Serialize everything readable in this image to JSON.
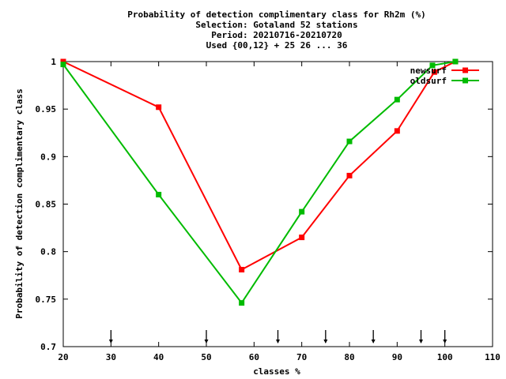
{
  "chart_data": {
    "type": "line",
    "title_lines": [
      "Probability of detection complimentary class  for Rh2m (%)",
      "Selection: Gotaland     52 stations",
      "Period: 20210716-20210720",
      "Used {00,12} + 25 26 ... 36"
    ],
    "xlabel": "classes %",
    "ylabel": "Probability of detection complimentary class",
    "xlim": [
      20,
      110
    ],
    "ylim": [
      0.7,
      1.0
    ],
    "xticks": [
      20,
      30,
      40,
      50,
      60,
      70,
      80,
      90,
      100,
      110
    ],
    "yticks": [
      0.7,
      0.75,
      0.8,
      0.85,
      0.9,
      0.95,
      1.0
    ],
    "ytick_labels": [
      "0.7",
      "0.75",
      "0.8",
      "0.85",
      "0.9",
      "0.95",
      "1"
    ],
    "arrows_x": [
      30,
      50,
      65,
      75,
      85,
      95,
      100
    ],
    "legend_position": "top-right",
    "series": [
      {
        "name": "newsurf",
        "color": "#ff0000",
        "x": [
          20,
          40,
          57.4,
          70,
          80,
          90,
          97.8,
          102.2
        ],
        "y": [
          1.0,
          0.952,
          0.781,
          0.815,
          0.88,
          0.927,
          0.989,
          1.0
        ]
      },
      {
        "name": "oldsurf",
        "color": "#00bb00",
        "x": [
          20,
          40,
          57.4,
          70,
          80,
          90,
          97.4,
          102.2
        ],
        "y": [
          0.997,
          0.86,
          0.746,
          0.842,
          0.916,
          0.96,
          0.996,
          1.0
        ]
      }
    ]
  }
}
